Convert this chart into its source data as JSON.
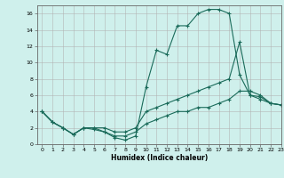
{
  "title": "",
  "xlabel": "Humidex (Indice chaleur)",
  "xlim": [
    -0.5,
    23
  ],
  "ylim": [
    0,
    17
  ],
  "xticks": [
    0,
    1,
    2,
    3,
    4,
    5,
    6,
    7,
    8,
    9,
    10,
    11,
    12,
    13,
    14,
    15,
    16,
    17,
    18,
    19,
    20,
    21,
    22,
    23
  ],
  "yticks": [
    0,
    2,
    4,
    6,
    8,
    10,
    12,
    14,
    16
  ],
  "bg_color": "#cff0ec",
  "grid_color": "#b0b0b0",
  "line_color": "#1a6b5a",
  "line1_x": [
    0,
    1,
    2,
    3,
    4,
    5,
    6,
    7,
    8,
    9,
    10,
    11,
    12,
    13,
    14,
    15,
    16,
    17,
    18,
    19,
    20,
    21,
    22,
    23
  ],
  "line1_y": [
    4,
    2.7,
    2,
    1.2,
    2,
    1.8,
    1.5,
    0.8,
    0.5,
    1,
    7,
    11.5,
    11,
    14.5,
    14.5,
    16,
    16.5,
    16.5,
    16,
    8.5,
    6,
    5.8,
    5,
    4.8
  ],
  "line2_x": [
    0,
    1,
    2,
    3,
    4,
    5,
    6,
    7,
    8,
    9,
    10,
    11,
    12,
    13,
    14,
    15,
    16,
    17,
    18,
    19,
    20,
    21,
    22,
    23
  ],
  "line2_y": [
    4,
    2.7,
    2,
    1.2,
    2,
    2,
    2,
    1.5,
    1.5,
    2,
    4,
    4.5,
    5,
    5.5,
    6,
    6.5,
    7,
    7.5,
    8,
    12.5,
    6,
    5.5,
    5,
    4.8
  ],
  "line3_x": [
    0,
    1,
    2,
    3,
    4,
    5,
    6,
    7,
    8,
    9,
    10,
    11,
    12,
    13,
    14,
    15,
    16,
    17,
    18,
    19,
    20,
    21,
    22,
    23
  ],
  "line3_y": [
    4,
    2.7,
    2,
    1.2,
    2,
    2,
    1.5,
    1,
    1,
    1.5,
    2.5,
    3,
    3.5,
    4,
    4,
    4.5,
    4.5,
    5,
    5.5,
    6.5,
    6.5,
    6,
    5,
    4.8
  ]
}
